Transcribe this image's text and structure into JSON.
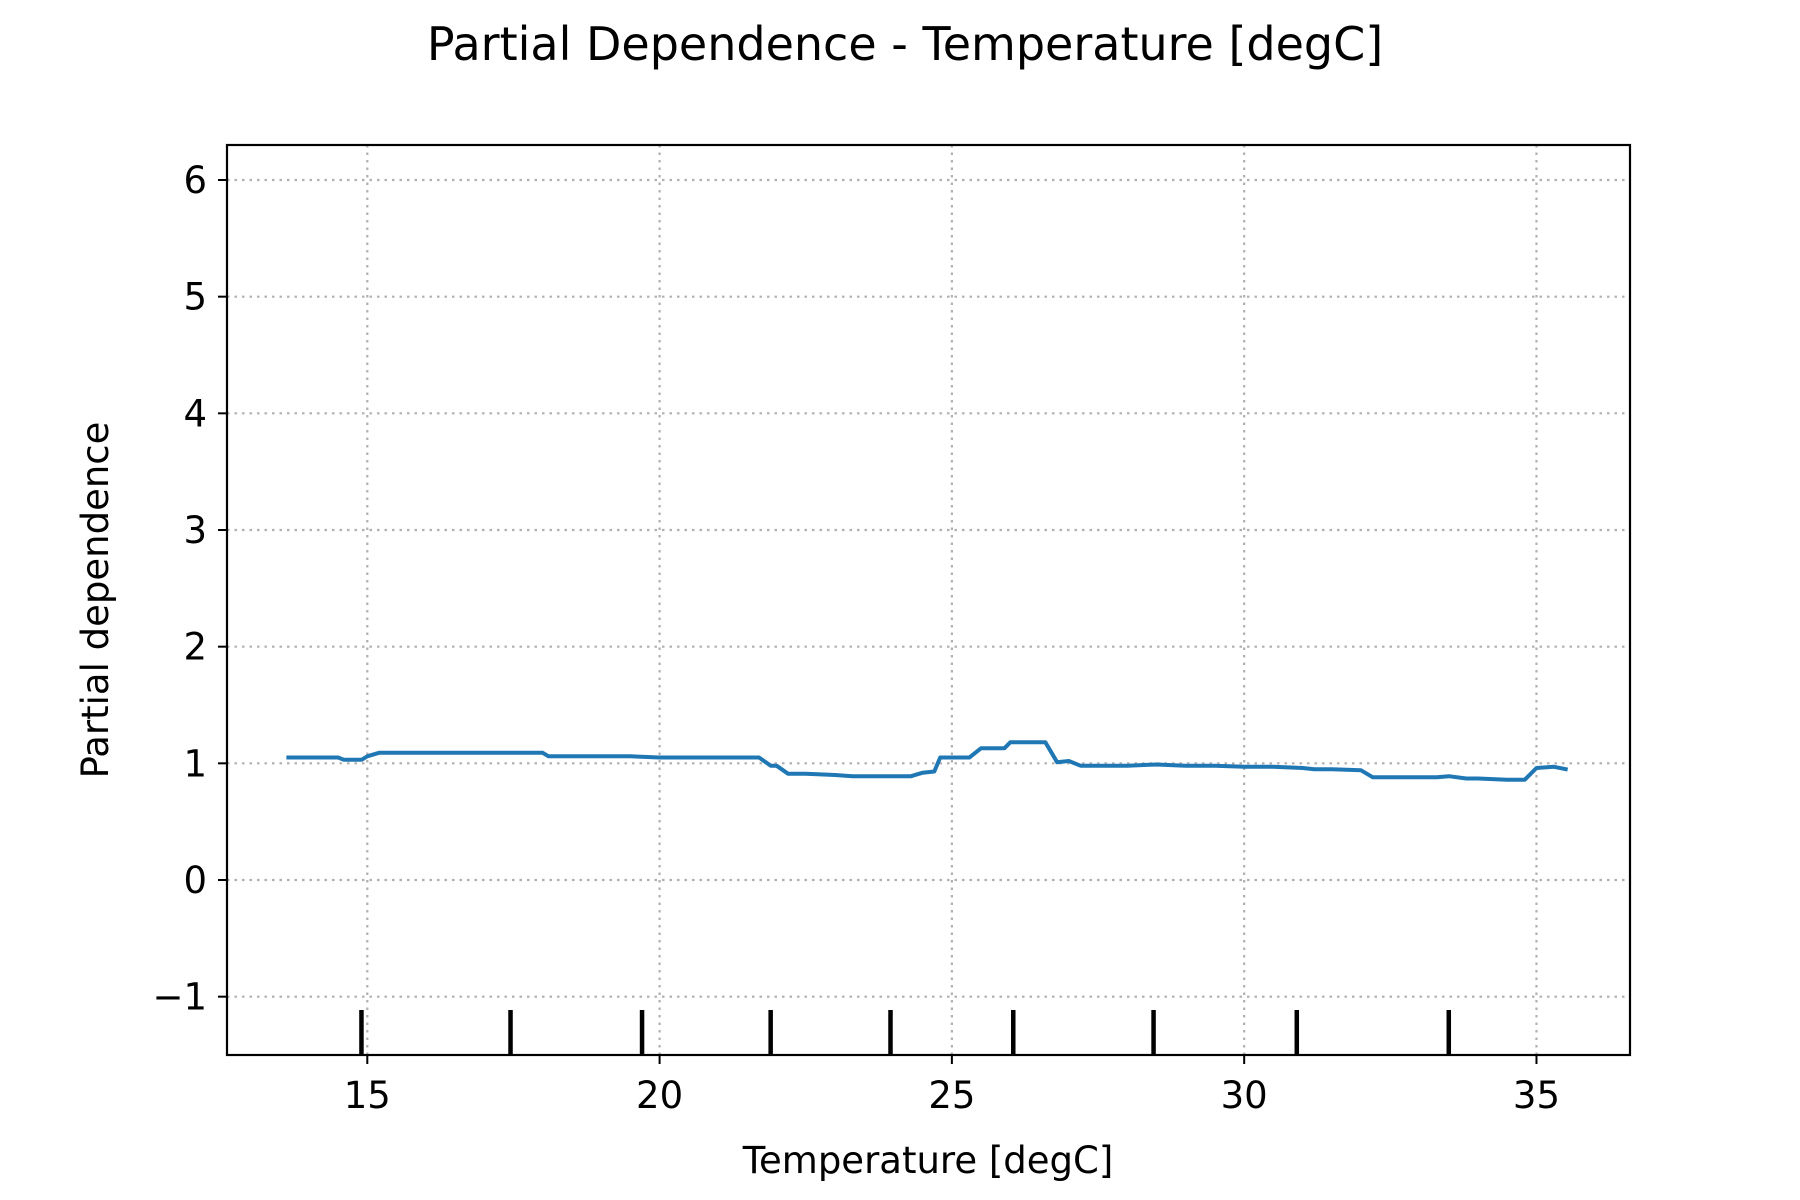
{
  "chart_data": {
    "type": "line",
    "title": "Partial Dependence - Temperature [degC]",
    "xlabel": "Temperature [degC]",
    "ylabel": "Partial dependence",
    "xlim": [
      12.6,
      36.6
    ],
    "ylim": [
      -1.5,
      6.3
    ],
    "x_ticks": [
      15,
      20,
      25,
      30,
      35
    ],
    "y_ticks": [
      -1,
      0,
      1,
      2,
      3,
      4,
      5,
      6
    ],
    "x_tick_labels": [
      "15",
      "20",
      "25",
      "30",
      "35"
    ],
    "y_tick_labels": [
      "−1",
      "0",
      "1",
      "2",
      "3",
      "4",
      "5",
      "6"
    ],
    "grid": true,
    "grid_style": "dotted",
    "line_color": "#1f77b4",
    "series": [
      {
        "x": [
          13.65,
          14.0,
          14.5,
          14.6,
          14.9,
          15.0,
          15.2,
          15.5,
          16.0,
          16.5,
          17.0,
          17.5,
          18.0,
          18.1,
          18.5,
          19.0,
          19.5,
          20.0,
          20.5,
          21.0,
          21.3,
          21.5,
          21.7,
          21.9,
          22.0,
          22.2,
          22.5,
          23.0,
          23.3,
          23.5,
          24.0,
          24.3,
          24.5,
          24.7,
          24.8,
          25.0,
          25.3,
          25.5,
          25.7,
          25.9,
          26.0,
          26.3,
          26.6,
          26.8,
          27.0,
          27.2,
          27.5,
          28.0,
          28.5,
          29.0,
          29.5,
          30.0,
          30.5,
          31.0,
          31.2,
          31.5,
          32.0,
          32.2,
          32.5,
          33.0,
          33.3,
          33.5,
          33.8,
          34.0,
          34.5,
          34.8,
          35.0,
          35.3,
          35.5
        ],
        "y": [
          1.05,
          1.05,
          1.05,
          1.03,
          1.03,
          1.06,
          1.09,
          1.09,
          1.09,
          1.09,
          1.09,
          1.09,
          1.09,
          1.06,
          1.06,
          1.06,
          1.06,
          1.05,
          1.05,
          1.05,
          1.05,
          1.05,
          1.05,
          0.98,
          0.98,
          0.91,
          0.91,
          0.9,
          0.89,
          0.89,
          0.89,
          0.89,
          0.92,
          0.93,
          1.05,
          1.05,
          1.05,
          1.13,
          1.13,
          1.13,
          1.18,
          1.18,
          1.18,
          1.01,
          1.02,
          0.98,
          0.98,
          0.98,
          0.99,
          0.98,
          0.98,
          0.97,
          0.97,
          0.96,
          0.95,
          0.95,
          0.94,
          0.88,
          0.88,
          0.88,
          0.88,
          0.89,
          0.87,
          0.87,
          0.86,
          0.86,
          0.96,
          0.97,
          0.95
        ]
      }
    ],
    "deciles": [
      14.9,
      17.45,
      19.7,
      21.9,
      23.95,
      26.05,
      28.45,
      30.9,
      33.5
    ]
  }
}
